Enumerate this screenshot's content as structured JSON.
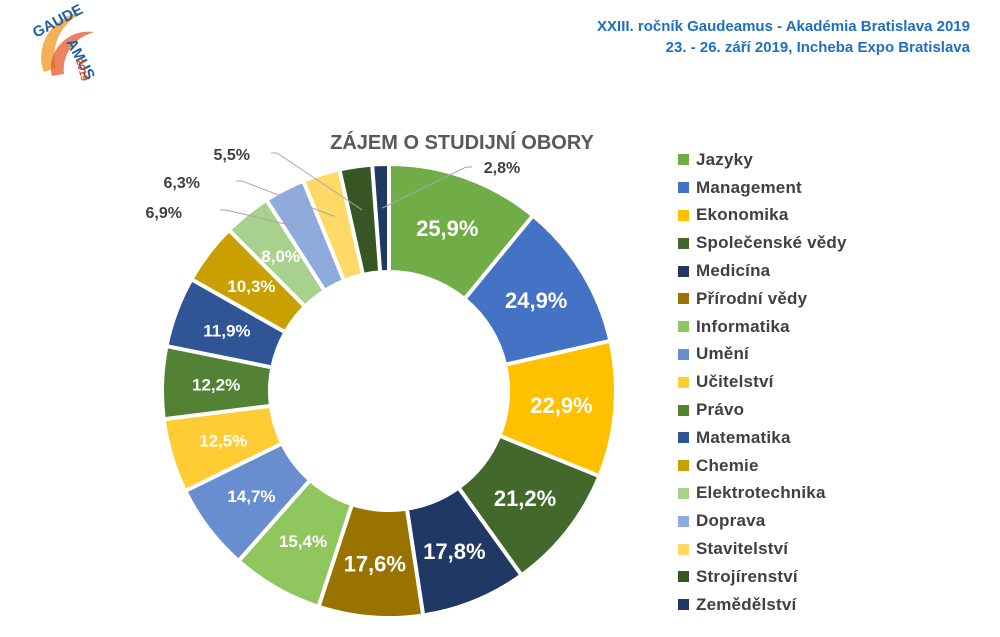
{
  "header": {
    "line1": "XXIII. ročník Gaudeamus - Akadémia Bratislava 2019",
    "line2": "23. - 26. září 2019, Incheba Expo Bratislava"
  },
  "logo": {
    "line1": "GAUDE",
    "line2": "AMUS",
    "year": "2019"
  },
  "chart_data": {
    "type": "pie",
    "variant": "doughnut",
    "title": "ZÁJEM O STUDIJNÍ OBORY",
    "legend_position": "right",
    "categories": [
      "Jazyky",
      "Management",
      "Ekonomika",
      "Společenské vědy",
      "Medicína",
      "Přírodní vědy",
      "Informatika",
      "Umění",
      "Učitelství",
      "Právo",
      "Matematika",
      "Chemie",
      "Elektrotechnika",
      "Doprava",
      "Stavitelství",
      "Strojírenství",
      "Zemědělství"
    ],
    "values": [
      25.9,
      24.9,
      22.9,
      21.2,
      17.8,
      17.6,
      15.4,
      14.7,
      12.5,
      12.2,
      11.9,
      10.3,
      8.0,
      6.9,
      6.3,
      5.5,
      2.8
    ],
    "labels": [
      "25,9%",
      "24,9%",
      "22,9%",
      "21,2%",
      "17,8%",
      "17,6%",
      "15,4%",
      "14,7%",
      "12,5%",
      "12,2%",
      "11,9%",
      "10,3%",
      "8,0%",
      "6,9%",
      "6,3%",
      "5,5%",
      "2,8%"
    ],
    "colors": [
      "#70ad47",
      "#4472c4",
      "#ffc000",
      "#43682b",
      "#203864",
      "#997300",
      "#8fc65e",
      "#698ed0",
      "#ffcd33",
      "#548235",
      "#2f5597",
      "#c9a000",
      "#a9d18e",
      "#8faadc",
      "#ffd966",
      "#375623",
      "#1f3864"
    ],
    "label_colors": [
      "#ffffff",
      "#ffffff",
      "#ffffff",
      "#ffffff",
      "#ffffff",
      "#ffffff",
      "#ffffff",
      "#ffffff",
      "#ffffff",
      "#ffffff",
      "#ffffff",
      "#ffffff",
      "#ffffff",
      "#404040",
      "#404040",
      "#404040",
      "#404040"
    ]
  }
}
